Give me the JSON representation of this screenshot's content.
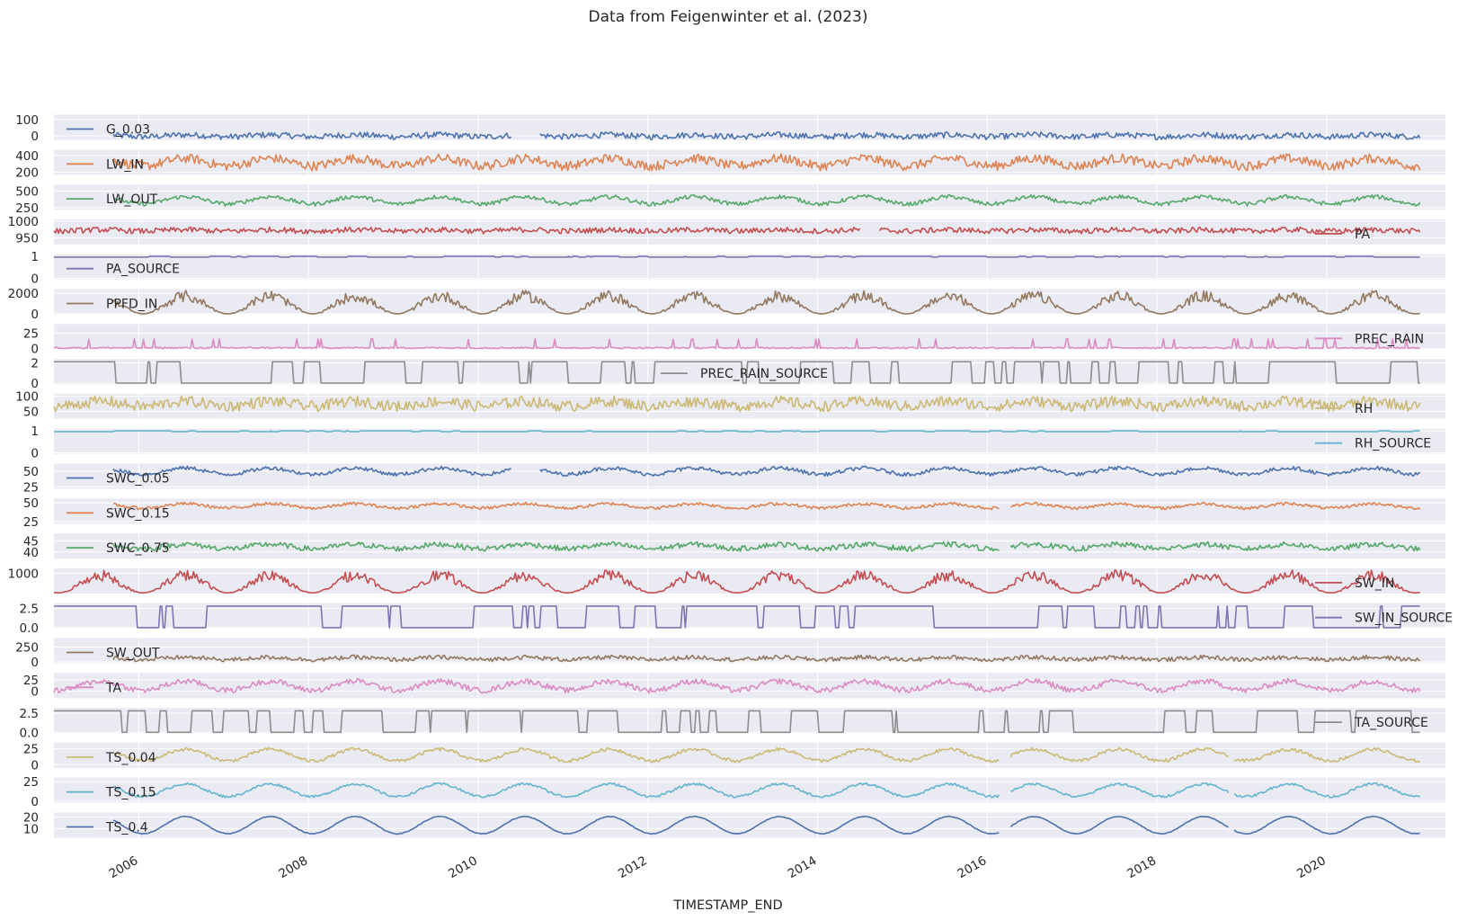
{
  "chart_data": {
    "type": "line",
    "title": "Data from Feigenwinter et al. (2023)",
    "xlabel": "TIMESTAMP_END",
    "x_range": [
      2005.0,
      2021.4
    ],
    "x_ticks": [
      "2006",
      "2008",
      "2010",
      "2012",
      "2014",
      "2016",
      "2018",
      "2020"
    ],
    "grid": true,
    "series": [
      {
        "name": "G_0.03",
        "color": "#4c72b0",
        "legend_position": "left",
        "yticks": [
          "100",
          "0"
        ],
        "ylim": [
          -25,
          130
        ],
        "baseline": 0,
        "amplitude": 6,
        "noise": 18,
        "start": 2005.7,
        "end": 2021.1,
        "gaps": [
          [
            2010.4,
            2010.73
          ]
        ]
      },
      {
        "name": "LW_IN",
        "color": "#dd8452",
        "legend_position": "left",
        "yticks": [
          "400",
          "200"
        ],
        "ylim": [
          170,
          470
        ],
        "baseline": 320,
        "amplitude": 45,
        "noise": 55,
        "start": 2005.7,
        "end": 2021.1,
        "gaps": []
      },
      {
        "name": "LW_OUT",
        "color": "#55a868",
        "legend_position": "left",
        "yticks": [
          "500",
          "250"
        ],
        "ylim": [
          220,
          600
        ],
        "baseline": 360,
        "amplitude": 55,
        "noise": 30,
        "start": 2005.7,
        "end": 2021.1,
        "gaps": []
      },
      {
        "name": "PA",
        "color": "#c44e52",
        "legend_position": "right",
        "yticks": [
          "1000",
          "950"
        ],
        "ylim": [
          930,
          1005
        ],
        "baseline": 972,
        "amplitude": 2,
        "noise": 8,
        "start": 2005.0,
        "end": 2021.1,
        "gaps": [
          [
            2014.5,
            2014.73
          ]
        ]
      },
      {
        "name": "PA_SOURCE",
        "color": "#8172b3",
        "legend_position": "left",
        "yticks": [
          "1",
          "0"
        ],
        "ylim": [
          -0.05,
          1.1
        ],
        "baseline": 1,
        "amplitude": 0,
        "noise": 0,
        "start": 2005.0,
        "end": 2021.1,
        "gaps": []
      },
      {
        "name": "PPFD_IN",
        "color": "#937860",
        "legend_position": "left",
        "yticks": [
          "2000",
          "0"
        ],
        "ylim": [
          -50,
          2400
        ],
        "baseline": 950,
        "amplitude": 950,
        "noise": 0,
        "start": 2005.7,
        "end": 2021.1,
        "gaps": []
      },
      {
        "name": "PREC_RAIN",
        "color": "#da8bc3",
        "legend_position": "right",
        "yticks": [
          "25",
          "0"
        ],
        "ylim": [
          -1,
          40
        ],
        "baseline": 0,
        "amplitude": 0,
        "noise": 3,
        "start": 2005.0,
        "end": 2021.1,
        "gaps": []
      },
      {
        "name": "PREC_RAIN_SOURCE",
        "color": "#8c8c8c",
        "legend_position": "upper center",
        "yticks": [
          "2",
          "0"
        ],
        "ylim": [
          -0.1,
          2.4
        ],
        "baseline": 0,
        "amplitude": 0,
        "noise": 0,
        "start": 2005.0,
        "end": 2021.1,
        "gaps": []
      },
      {
        "name": "RH",
        "color": "#ccb974",
        "legend_position": "right",
        "yticks": [
          "100",
          "50"
        ],
        "ylim": [
          25,
          108
        ],
        "baseline": 75,
        "amplitude": 8,
        "noise": 18,
        "start": 2005.0,
        "end": 2021.1,
        "gaps": []
      },
      {
        "name": "RH_SOURCE",
        "color": "#64b5cd",
        "legend_position": "right",
        "yticks": [
          "1",
          "0"
        ],
        "ylim": [
          -0.05,
          1.1
        ],
        "baseline": 1,
        "amplitude": 0,
        "noise": 0,
        "start": 2005.0,
        "end": 2021.1,
        "gaps": []
      },
      {
        "name": "SWC_0.05",
        "color": "#4c72b0",
        "legend_position": "left",
        "yticks": [
          "50",
          "25"
        ],
        "ylim": [
          22,
          62
        ],
        "baseline": 50,
        "amplitude": 5,
        "noise": 3,
        "start": 2005.7,
        "end": 2021.1,
        "gaps": [
          [
            2010.4,
            2010.73
          ]
        ]
      },
      {
        "name": "SWC_0.15",
        "color": "#dd8452",
        "legend_position": "left",
        "yticks": [
          "50",
          "25"
        ],
        "ylim": [
          22,
          56
        ],
        "baseline": 46,
        "amplitude": 3,
        "noise": 2,
        "start": 2005.7,
        "end": 2021.1,
        "gaps": [
          [
            2016.15,
            2016.27
          ]
        ]
      },
      {
        "name": "SWC_0.75",
        "color": "#55a868",
        "legend_position": "left",
        "yticks": [
          "45",
          "40"
        ],
        "ylim": [
          37,
          48.5
        ],
        "baseline": 42.5,
        "amplitude": 1,
        "noise": 1.2,
        "start": 2005.7,
        "end": 2021.1,
        "gaps": [
          [
            2016.15,
            2016.27
          ]
        ]
      },
      {
        "name": "SW_IN",
        "color": "#c44e52",
        "legend_position": "right",
        "yticks": [
          "1000"
        ],
        "ylim": [
          -30,
          1250
        ],
        "baseline": 500,
        "amplitude": 500,
        "noise": 0,
        "start": 2005.0,
        "end": 2021.1,
        "gaps": []
      },
      {
        "name": "SW_IN_SOURCE",
        "color": "#8172b3",
        "legend_position": "right",
        "yticks": [
          "2.5",
          "0.0"
        ],
        "ylim": [
          -0.1,
          3.2
        ],
        "baseline": 0,
        "amplitude": 0,
        "noise": 0,
        "start": 2005.0,
        "end": 2021.1,
        "gaps": []
      },
      {
        "name": "SW_OUT",
        "color": "#937860",
        "legend_position": "left",
        "yticks": [
          "250",
          "0"
        ],
        "ylim": [
          -20,
          400
        ],
        "baseline": 60,
        "amplitude": 20,
        "noise": 35,
        "start": 2005.7,
        "end": 2021.1,
        "gaps": []
      },
      {
        "name": "TA",
        "color": "#da8bc3",
        "legend_position": "left",
        "yticks": [
          "25",
          "0"
        ],
        "ylim": [
          -15,
          40
        ],
        "baseline": 12,
        "amplitude": 10,
        "noise": 6,
        "start": 2005.0,
        "end": 2021.1,
        "gaps": []
      },
      {
        "name": "TA_SOURCE",
        "color": "#8c8c8c",
        "legend_position": "right",
        "yticks": [
          "2.5",
          "0.0"
        ],
        "ylim": [
          -0.1,
          3.2
        ],
        "baseline": 0,
        "amplitude": 0,
        "noise": 0,
        "start": 2005.0,
        "end": 2021.1,
        "gaps": []
      },
      {
        "name": "TS_0.04",
        "color": "#ccb974",
        "legend_position": "left",
        "yticks": [
          "25",
          "0"
        ],
        "ylim": [
          -5,
          34
        ],
        "baseline": 15,
        "amplitude": 9,
        "noise": 2.5,
        "start": 2005.7,
        "end": 2021.1,
        "gaps": [
          [
            2016.15,
            2016.27
          ],
          [
            2018.85,
            2018.9
          ]
        ]
      },
      {
        "name": "TS_0.15",
        "color": "#64b5cd",
        "legend_position": "left",
        "yticks": [
          "25",
          "0"
        ],
        "ylim": [
          -2,
          30
        ],
        "baseline": 14,
        "amplitude": 8,
        "noise": 1.5,
        "start": 2005.7,
        "end": 2021.1,
        "gaps": [
          [
            2016.15,
            2016.27
          ],
          [
            2018.85,
            2018.9
          ]
        ]
      },
      {
        "name": "TS_0.4",
        "color": "#4c72b0",
        "legend_position": "left",
        "yticks": [
          "20",
          "10"
        ],
        "ylim": [
          2,
          24
        ],
        "baseline": 13,
        "amplitude": 7.5,
        "noise": 0.3,
        "start": 2005.7,
        "end": 2021.1,
        "gaps": [
          [
            2016.15,
            2016.27
          ],
          [
            2018.85,
            2018.9
          ]
        ]
      }
    ]
  }
}
